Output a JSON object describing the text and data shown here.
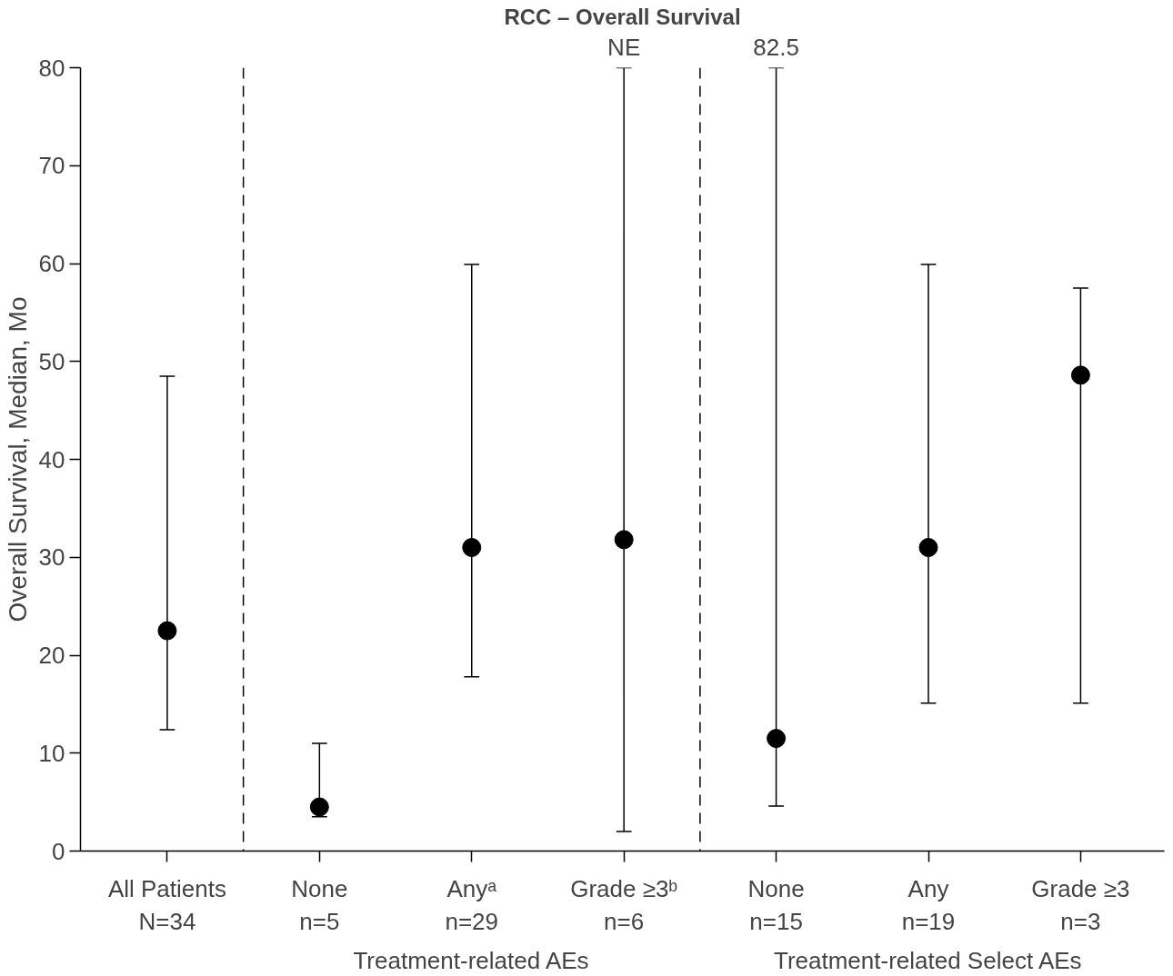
{
  "chart_data": {
    "type": "scatter",
    "title": "RCC – Overall Survival",
    "ylabel": "Overall Survival, Median, Mo",
    "categories": [
      "All Patients\nN=34",
      "None\nn=5",
      "Anyᵃ\nn=29",
      "Grade ≥3ᵇ\nn=6",
      "None\nn=15",
      "Any\nn=19",
      "Grade ≥3\nn=3"
    ],
    "series": [
      {
        "color": "#000000",
        "values": [
          22.5,
          4.5,
          31.0,
          31.8,
          11.5,
          31.0,
          48.6
        ],
        "errors": [
          [
            12.4,
            48.5
          ],
          [
            3.5,
            11.0
          ],
          [
            17.8,
            59.9
          ],
          [
            2.0,
            80
          ],
          [
            4.6,
            80
          ],
          [
            15.1,
            59.9
          ],
          [
            15.1,
            57.5
          ]
        ]
      }
    ],
    "marker": "circle",
    "ylim": [
      0,
      80
    ],
    "yticks": [
      0,
      10,
      20,
      30,
      40,
      50,
      60,
      70,
      80
    ],
    "grid": false,
    "annotations": [
      "Treatment-related AEs",
      "Treatment-related Select AEs",
      "NE",
      "82.5"
    ]
  }
}
